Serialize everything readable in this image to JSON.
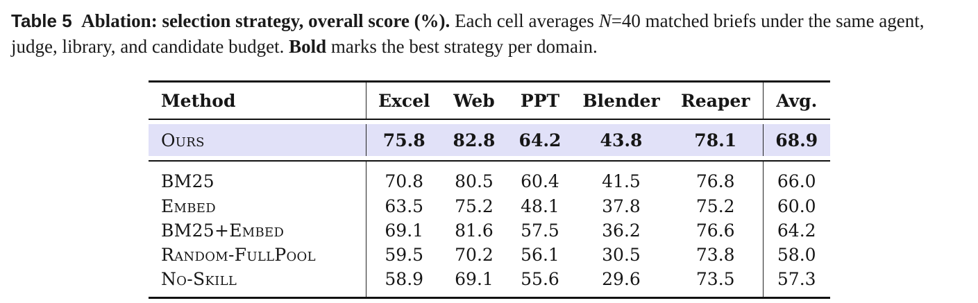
{
  "caption": {
    "label": "Table 5",
    "title": "Ablation: selection strategy, overall score (%).",
    "text_before_n": "Each cell averages",
    "n_symbol": "N",
    "text_after_n": "=40 matched briefs under the same agent, judge, library, and candidate budget.",
    "bold_word": "Bold",
    "text_end": "marks the best strategy per domain."
  },
  "table": {
    "headers": [
      "Method",
      "Excel",
      "Web",
      "PPT",
      "Blender",
      "Reaper",
      "Avg."
    ],
    "ours": {
      "method": "Ours",
      "values": [
        "75.8",
        "82.8",
        "64.2",
        "43.8",
        "78.1",
        "68.9"
      ]
    },
    "rows": [
      {
        "method": "BM25",
        "values": [
          "70.8",
          "80.5",
          "60.4",
          "41.5",
          "76.8",
          "66.0"
        ]
      },
      {
        "method": "Embed",
        "values": [
          "63.5",
          "75.2",
          "48.1",
          "37.8",
          "75.2",
          "60.0"
        ]
      },
      {
        "method": "BM25+Embed",
        "values": [
          "69.1",
          "81.6",
          "57.5",
          "36.2",
          "76.6",
          "64.2"
        ]
      },
      {
        "method": "Random-FullPool",
        "values": [
          "59.5",
          "70.2",
          "56.1",
          "30.5",
          "73.8",
          "58.0"
        ]
      },
      {
        "method": "No-Skill",
        "values": [
          "58.9",
          "69.1",
          "55.6",
          "29.6",
          "73.5",
          "57.3"
        ]
      }
    ]
  },
  "colors": {
    "highlight_row": "#e1e1f8",
    "rules": "#111111"
  }
}
